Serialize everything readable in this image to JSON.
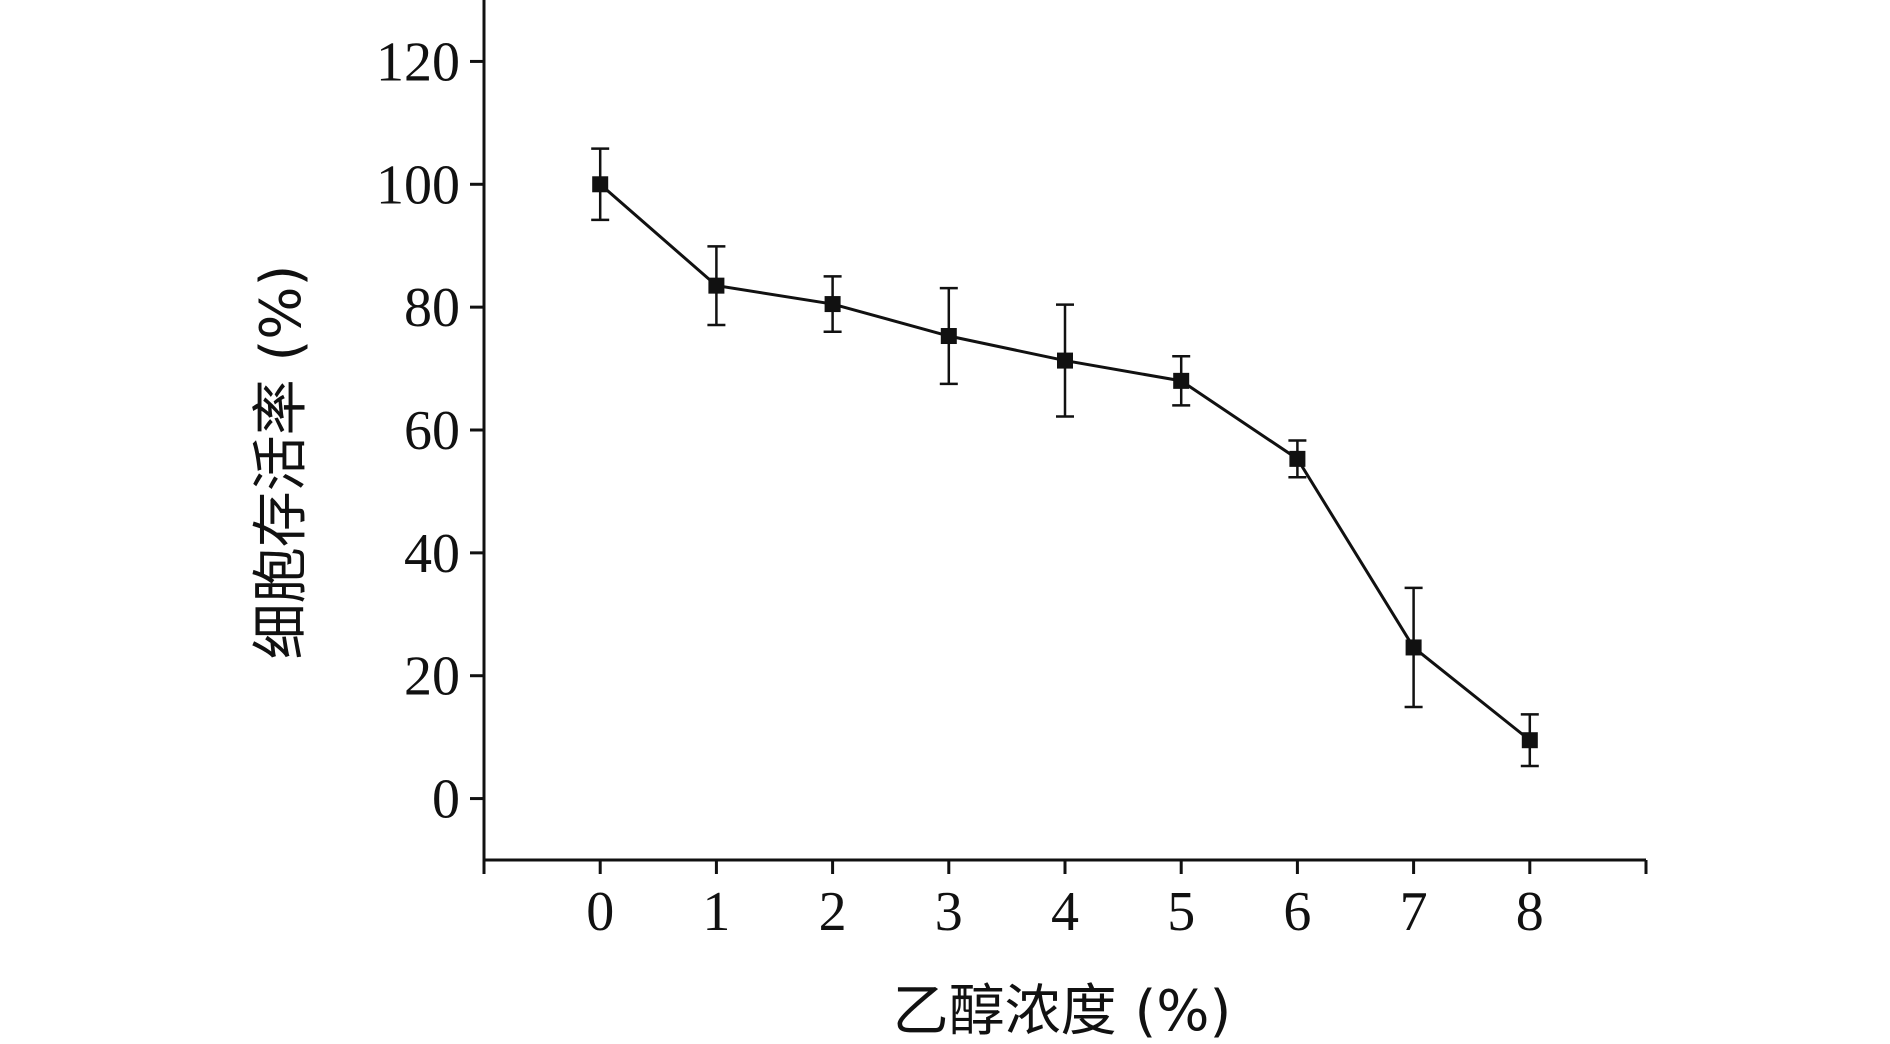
{
  "chart_data": {
    "type": "line",
    "xlabel": "乙醇浓度 (%)",
    "ylabel": "细胞存活率 (%)",
    "x": [
      0,
      1,
      2,
      3,
      4,
      5,
      6,
      7,
      8
    ],
    "xlim": [
      -1,
      9
    ],
    "ylim": [
      -10,
      130
    ],
    "x_ticks": [
      "0",
      "1",
      "2",
      "3",
      "4",
      "5",
      "6",
      "7",
      "8"
    ],
    "y_ticks": [
      "0",
      "20",
      "40",
      "60",
      "80",
      "100",
      "120"
    ],
    "series": [
      {
        "values": [
          100,
          83.5,
          80.5,
          75.3,
          71.3,
          68,
          55.3,
          24.6,
          9.5
        ],
        "error": [
          5.8,
          6.4,
          4.5,
          7.8,
          9.1,
          4.0,
          3.0,
          9.7,
          4.2
        ],
        "marker": "square",
        "color": "#111111"
      }
    ],
    "grid": false,
    "legend": "none"
  }
}
